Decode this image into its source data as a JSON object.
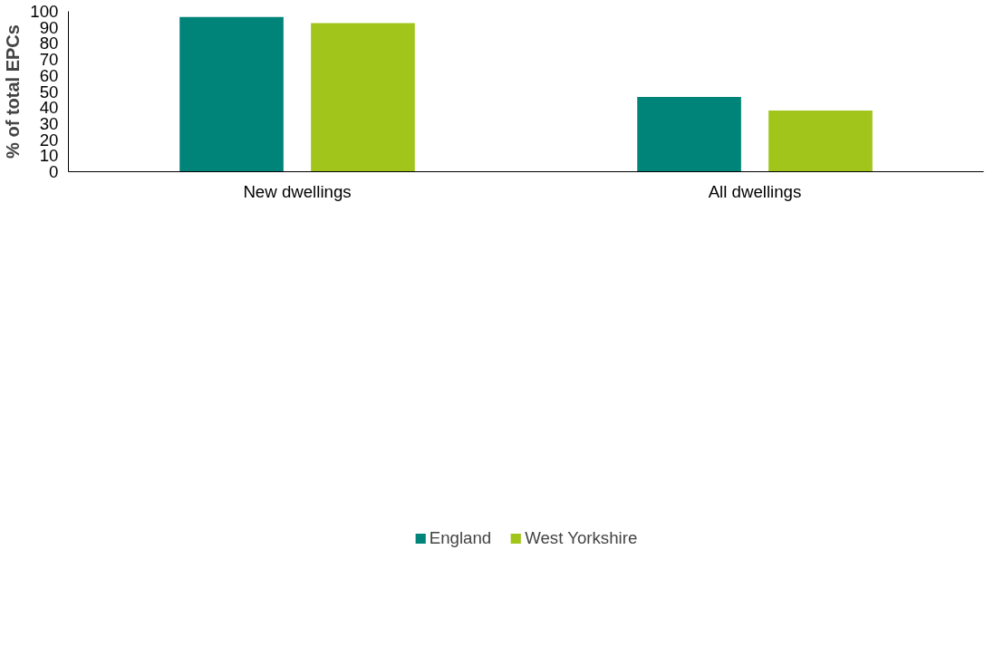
{
  "chart_data": {
    "type": "bar",
    "ylabel": "% of total EPCs",
    "categories": [
      "New dwellings",
      "All dwellings"
    ],
    "series": [
      {
        "name": "England",
        "color": "#00847a",
        "values": [
          96.5,
          46.6
        ]
      },
      {
        "name": "West Yorkshire",
        "color": "#a2c51b",
        "values": [
          92.6,
          38.1
        ]
      }
    ],
    "ylim": [
      0,
      100
    ],
    "yticks": [
      0,
      10,
      20,
      30,
      40,
      50,
      60,
      70,
      80,
      90,
      100
    ],
    "grid": false,
    "legend": "bottom"
  }
}
